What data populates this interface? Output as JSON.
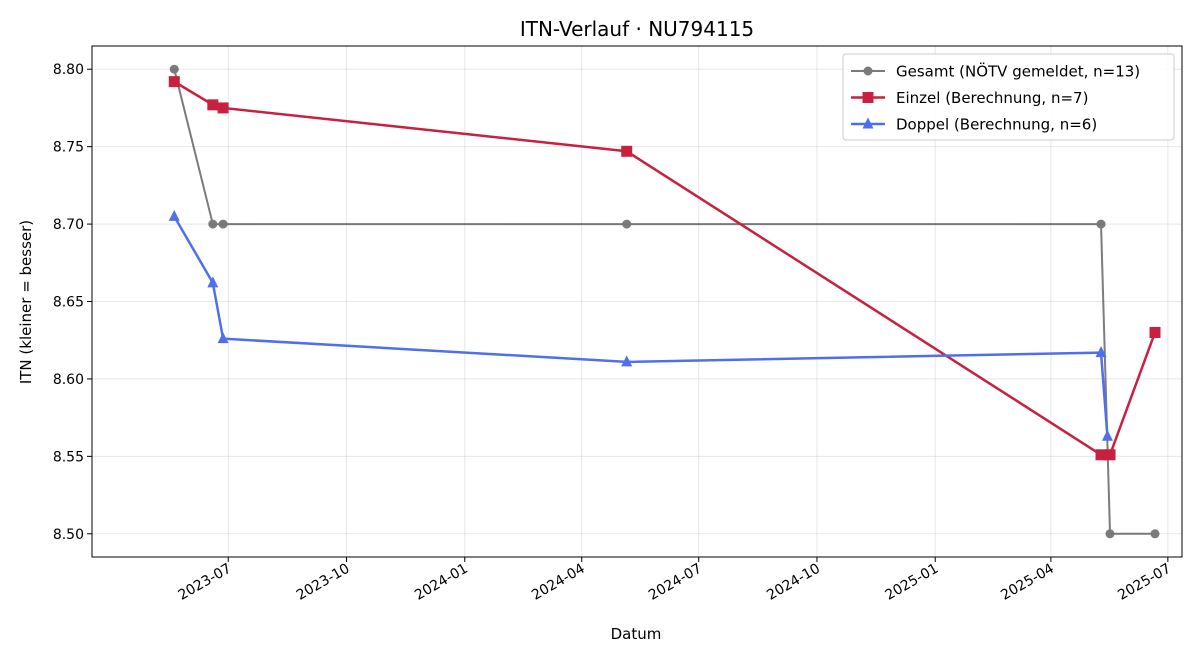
{
  "chart_data": {
    "type": "line",
    "title": "ITN-Verlauf · NU794115",
    "xlabel": "Datum",
    "ylabel": "ITN  (kleiner = besser)",
    "x_type": "date",
    "xlim": [
      "2023-03-17",
      "2025-07-12"
    ],
    "ylim": [
      8.485,
      8.815
    ],
    "x_ticks": [
      "2023-07-01",
      "2023-10-01",
      "2024-01-01",
      "2024-04-01",
      "2024-07-01",
      "2024-10-01",
      "2025-01-01",
      "2025-04-01",
      "2025-07-01"
    ],
    "x_tick_labels": [
      "2023-07",
      "2023-10",
      "2024-01",
      "2024-04",
      "2024-07",
      "2024-10",
      "2025-01",
      "2025-04",
      "2025-07"
    ],
    "y_ticks": [
      8.5,
      8.55,
      8.6,
      8.65,
      8.7,
      8.75,
      8.8
    ],
    "y_tick_labels": [
      "8.50",
      "8.55",
      "8.60",
      "8.65",
      "8.70",
      "8.75",
      "8.80"
    ],
    "grid": true,
    "legend_position": "top-right",
    "series": [
      {
        "name": "Gesamt (NÖTV gemeldet, n=13)",
        "color": "#444444",
        "line_opacity": 0.7,
        "marker": "circle",
        "line_width": 2,
        "points": [
          [
            "2023-05-20",
            8.8
          ],
          [
            "2023-06-19",
            8.7
          ],
          [
            "2023-06-27",
            8.7
          ],
          [
            "2024-05-06",
            8.7
          ],
          [
            "2025-05-10",
            8.7
          ],
          [
            "2025-05-17",
            8.5
          ],
          [
            "2025-06-21",
            8.5
          ]
        ]
      },
      {
        "name": "Einzel (Berechnung, n=7)",
        "color": "#c8203f",
        "marker": "square",
        "line_width": 2.5,
        "points": [
          [
            "2023-05-20",
            8.792
          ],
          [
            "2023-06-19",
            8.777
          ],
          [
            "2023-06-27",
            8.775
          ],
          [
            "2024-05-06",
            8.747
          ],
          [
            "2025-05-10",
            8.551
          ],
          [
            "2025-05-17",
            8.551
          ],
          [
            "2025-06-21",
            8.63
          ]
        ]
      },
      {
        "name": "Doppel (Berechnung, n=6)",
        "color": "#4f6fef",
        "marker": "triangle",
        "line_width": 2.5,
        "points": [
          [
            "2023-05-20",
            8.705
          ],
          [
            "2023-06-19",
            8.662
          ],
          [
            "2023-06-27",
            8.626
          ],
          [
            "2024-05-06",
            8.611
          ],
          [
            "2025-05-10",
            8.617
          ],
          [
            "2025-05-15",
            8.563
          ]
        ]
      }
    ]
  }
}
